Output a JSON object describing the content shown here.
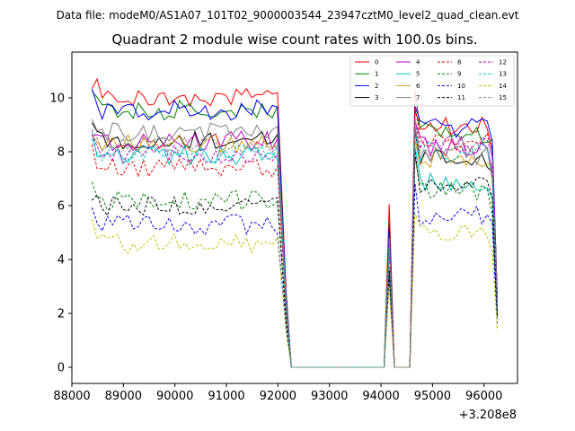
{
  "chart_data": {
    "type": "line",
    "suptitle": "Data file: modeM0/AS1A07_101T02_9000003544_23947cztM0_level2_quad_clean.evt",
    "title": "Quadrant 2 module wise count rates with 100.0s bins.",
    "xlabel": "",
    "ylabel": "",
    "x_offset_label": "+3.208e8",
    "x_offset": 320800000,
    "xlim": [
      88000,
      96650
    ],
    "ylim": [
      -0.6,
      11.7
    ],
    "x_ticks": [
      88000,
      89000,
      90000,
      91000,
      92000,
      93000,
      94000,
      95000,
      96000
    ],
    "x_tick_labels": [
      "88000",
      "89000",
      "90000",
      "91000",
      "92000",
      "93000",
      "94000",
      "95000",
      "96000"
    ],
    "y_ticks": [
      0,
      2,
      4,
      6,
      8,
      10
    ],
    "y_tick_labels": [
      "0",
      "2",
      "4",
      "6",
      "8",
      "10"
    ],
    "legend_position": "upper right",
    "legend_columns": 4,
    "time_segments": [
      {
        "start": 88390,
        "end": 92060,
        "step": 100
      },
      {
        "start": 92160,
        "end": 92260,
        "step": 100
      },
      {
        "start": 92360,
        "end": 94060,
        "step": 100
      },
      {
        "start": 94160,
        "end": 94260,
        "step": 100
      },
      {
        "start": 94360,
        "end": 94560,
        "step": 100
      },
      {
        "start": 94660,
        "end": 96260,
        "step": 100
      }
    ],
    "series": [
      {
        "name": "0",
        "color": "#ff0000",
        "style": "solid",
        "level": 10.05,
        "tail": 9.0,
        "spike": 6.05
      },
      {
        "name": "1",
        "color": "#008000",
        "style": "solid",
        "level": 9.55,
        "tail": 8.7,
        "spike": 5.4
      },
      {
        "name": "2",
        "color": "#0000ff",
        "style": "solid",
        "level": 9.55,
        "tail": 8.9,
        "spike": 5.2
      },
      {
        "name": "3",
        "color": "#000000",
        "style": "solid",
        "level": 8.45,
        "tail": 7.8,
        "spike": 4.6
      },
      {
        "name": "4",
        "color": "#bf00bf",
        "style": "solid",
        "level": 8.4,
        "tail": 8.2,
        "spike": 4.7
      },
      {
        "name": "5",
        "color": "#00bfbf",
        "style": "solid",
        "level": 7.85,
        "tail": 6.9,
        "spike": 4.4
      },
      {
        "name": "6",
        "color": "#d4a017",
        "style": "solid",
        "level": 8.3,
        "tail": 7.8,
        "spike": 4.5
      },
      {
        "name": "7",
        "color": "#808080",
        "style": "solid",
        "level": 8.7,
        "tail": 7.9,
        "spike": 4.8
      },
      {
        "name": "8",
        "color": "#ff0000",
        "style": "dashed",
        "level": 7.4,
        "tail": 8.4,
        "spike": 4.3
      },
      {
        "name": "9",
        "color": "#008000",
        "style": "dashed",
        "level": 6.2,
        "tail": 6.5,
        "spike": 3.7
      },
      {
        "name": "10",
        "color": "#0000ff",
        "style": "dashed",
        "level": 5.3,
        "tail": 5.6,
        "spike": 3.3
      },
      {
        "name": "11",
        "color": "#000000",
        "style": "dashed",
        "level": 6.0,
        "tail": 6.8,
        "spike": 3.6
      },
      {
        "name": "12",
        "color": "#bf00bf",
        "style": "dashed",
        "level": 7.9,
        "tail": 8.3,
        "spike": 4.6
      },
      {
        "name": "13",
        "color": "#00bfbf",
        "style": "dashed",
        "level": 7.9,
        "tail": 8.0,
        "spike": 4.4
      },
      {
        "name": "14",
        "color": "#bfbf00",
        "style": "dashed",
        "level": 4.6,
        "tail": 4.9,
        "spike": 3.0
      },
      {
        "name": "15",
        "color": "#808080",
        "style": "dashed",
        "level": 8.2,
        "tail": 8.3,
        "spike": 4.6
      }
    ]
  }
}
